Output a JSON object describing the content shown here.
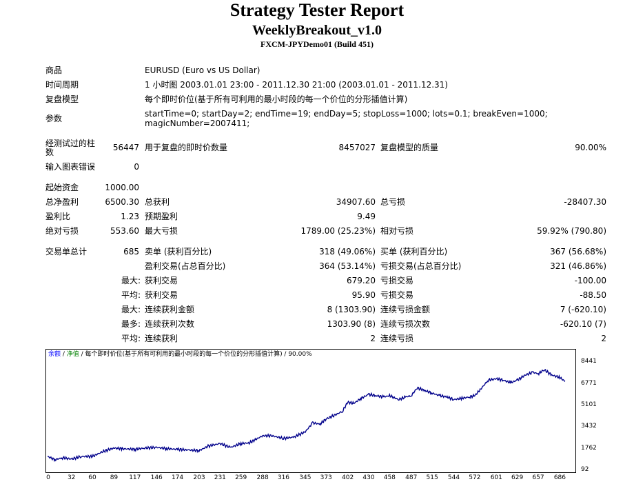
{
  "report": {
    "title": "Strategy Tester Report",
    "ea_name": "WeeklyBreakout_v1.0",
    "server": "FXCM-JPYDemo01 (Build 451)"
  },
  "info": [
    {
      "label": "商品",
      "value": "EURUSD (Euro vs US Dollar)"
    },
    {
      "label": "时间周期",
      "value": "1 小时图 2003.01.01 23:00 - 2011.12.30 21:00 (2003.01.01 - 2011.12.31)"
    },
    {
      "label": "复盘模型",
      "value": "每个即时价位(基于所有可利用的最小时段的每一个价位的分形插值计算)"
    },
    {
      "label": "参数",
      "value_line1": "startTime=0; startDay=2; endTime=19; endDay=5; stopLoss=1000; lots=0.1; breakEven=1000;",
      "value_line2": "magicNumber=2007411;"
    }
  ],
  "bars_tested": {
    "label_line1": "经测试过的柱",
    "label_line2": "数",
    "value": "56447"
  },
  "ticks": {
    "label": "用于复盘的即时价数量",
    "value": "8457027"
  },
  "quality": {
    "label": "复盘模型的质量",
    "value": "90.00%"
  },
  "mismatch": {
    "label": "输入图表错误",
    "value": "0"
  },
  "deposit": {
    "label": "起始资金",
    "value": "1000.00"
  },
  "net_profit": {
    "label": "总净盈利",
    "value": "6500.30"
  },
  "gross_profit": {
    "label": "总获利",
    "value": "34907.60"
  },
  "gross_loss": {
    "label": "总亏损",
    "value": "-28407.30"
  },
  "profit_factor": {
    "label": "盈利比",
    "value": "1.23"
  },
  "expected_payoff": {
    "label": "预期盈利",
    "value": "9.49"
  },
  "abs_drawdown": {
    "label": "绝对亏损",
    "value": "553.60"
  },
  "max_drawdown": {
    "label": "最大亏损",
    "value": "1789.00 (25.23%)"
  },
  "rel_drawdown": {
    "label": "相对亏损",
    "value": "59.92% (790.80)"
  },
  "total_trades": {
    "label": "交易单总计",
    "value": "685"
  },
  "short_pos": {
    "label": "卖单 (获利百分比)",
    "value": "318 (49.06%)"
  },
  "long_pos": {
    "label": "买单 (获利百分比)",
    "value": "367 (56.68%)"
  },
  "profit_trades": {
    "label": "盈利交易(占总百分比)",
    "value": "364 (53.14%)"
  },
  "loss_trades": {
    "label": "亏损交易(占总百分比)",
    "value": "321 (46.86%)"
  },
  "largest": {
    "prefix": "最大:",
    "profit_label": "获利交易",
    "profit": "679.20",
    "loss_label": "亏损交易",
    "loss": "-100.00"
  },
  "average": {
    "prefix": "平均:",
    "profit_label": "获利交易",
    "profit": "95.90",
    "loss_label": "亏损交易",
    "loss": "-88.50"
  },
  "max_consec": {
    "prefix": "最大:",
    "wins_label": "连续获利金额",
    "wins": "8 (1303.90)",
    "losses_label": "连续亏损金额",
    "losses": "7 (-620.10)"
  },
  "maximal_consec": {
    "prefix": "最多:",
    "profit_label": "连续获利次数",
    "profit": "1303.90 (8)",
    "loss_label": "连续亏损次数",
    "loss": "-620.10 (7)"
  },
  "avg_consec": {
    "prefix": "平均:",
    "wins_label": "连续获利",
    "wins": "2",
    "losses_label": "连续亏损",
    "losses": "2"
  },
  "chart_legend": {
    "balance": "余额",
    "sep1": " / ",
    "equity": "净值",
    "rest": " / 每个即时价位(基于所有可利用的最小时段的每一个价位的分形插值计算) / 90.00%",
    "balance_color": "#0000ff",
    "equity_color": "#008000"
  },
  "chart_data": {
    "type": "line",
    "line_color": "#00008b",
    "y_ticks": [
      "8441",
      "6771",
      "5101",
      "3432",
      "1762",
      "92"
    ],
    "y_tick_values": [
      8441,
      6771,
      5101,
      3432,
      1762,
      92
    ],
    "x_ticks": [
      "0",
      "32",
      "60",
      "89",
      "117",
      "146",
      "174",
      "203",
      "231",
      "259",
      "288",
      "316",
      "345",
      "373",
      "402",
      "430",
      "458",
      "487",
      "515",
      "544",
      "572",
      "601",
      "629",
      "657",
      "686"
    ],
    "xlim": [
      0,
      705
    ],
    "ylim": [
      92,
      9150
    ],
    "series": [
      {
        "x": [
          0,
          10,
          20,
          32,
          45,
          60,
          75,
          89,
          100,
          117,
          130,
          146,
          160,
          174,
          190,
          203,
          215,
          231,
          245,
          259,
          270,
          288,
          300,
          316,
          330,
          345,
          355,
          365,
          373,
          385,
          395,
          402,
          410,
          420,
          430,
          440,
          450,
          458,
          470,
          480,
          487,
          495,
          505,
          515,
          525,
          535,
          544,
          555,
          565,
          572,
          580,
          590,
          601,
          610,
          620,
          629,
          640,
          650,
          657,
          665,
          675,
          686,
          693
        ],
        "y": [
          1100,
          850,
          1000,
          900,
          1100,
          1100,
          1500,
          1750,
          1700,
          1650,
          1750,
          1800,
          1700,
          1650,
          1600,
          1550,
          1900,
          2100,
          1800,
          2100,
          2150,
          2700,
          2700,
          2500,
          2600,
          3000,
          3700,
          3600,
          4000,
          4300,
          4600,
          5300,
          5200,
          5600,
          5900,
          5800,
          5700,
          5800,
          5500,
          5700,
          5800,
          6400,
          6200,
          6000,
          5800,
          5700,
          5500,
          5600,
          5700,
          5800,
          6300,
          7000,
          7100,
          7000,
          6800,
          7000,
          7400,
          7600,
          7500,
          7800,
          7400,
          7200,
          6900
        ]
      }
    ]
  }
}
